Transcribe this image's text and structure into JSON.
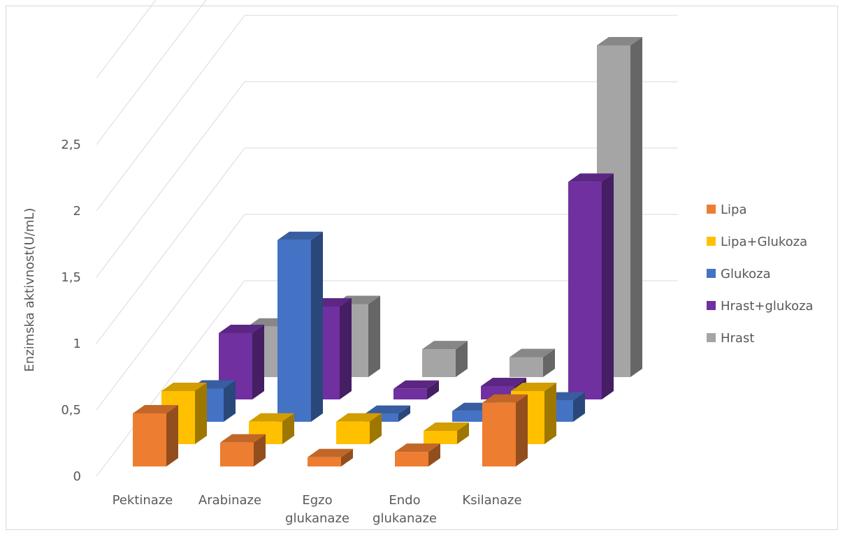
{
  "chart_data": {
    "type": "bar",
    "title": "",
    "xlabel": "",
    "ylabel": "Enzimska aktivnost(U/mL)",
    "categories": [
      [
        "Pektinaze"
      ],
      [
        "Arabinaze"
      ],
      [
        "Egzo",
        "glukanaze"
      ],
      [
        "Endo",
        "glukanaze"
      ],
      [
        "Ksilanaze"
      ]
    ],
    "series": [
      {
        "name": "Lipa",
        "color": "#ed7d31",
        "values": [
          0.4,
          0.18,
          0.07,
          0.11,
          0.48
        ]
      },
      {
        "name": "Lipa+Glukoza",
        "color": "#ffc000",
        "values": [
          0.4,
          0.17,
          0.17,
          0.1,
          0.4
        ]
      },
      {
        "name": "Glukoza",
        "color": "#4472c4",
        "values": [
          0.25,
          1.37,
          0.06,
          0.08,
          0.16
        ]
      },
      {
        "name": "Hrast+glukoza",
        "color": "#7030a0",
        "values": [
          0.5,
          0.7,
          0.08,
          0.1,
          1.64
        ]
      },
      {
        "name": "Hrast",
        "color": "#a5a5a5",
        "values": [
          0.38,
          0.55,
          0.21,
          0.15,
          2.5
        ]
      }
    ],
    "yticks": [
      "0",
      "0,5",
      "1",
      "1,5",
      "2",
      "2,5"
    ],
    "ylim": [
      0,
      3
    ],
    "grid": true,
    "legend": "right",
    "view": "3d-column"
  }
}
